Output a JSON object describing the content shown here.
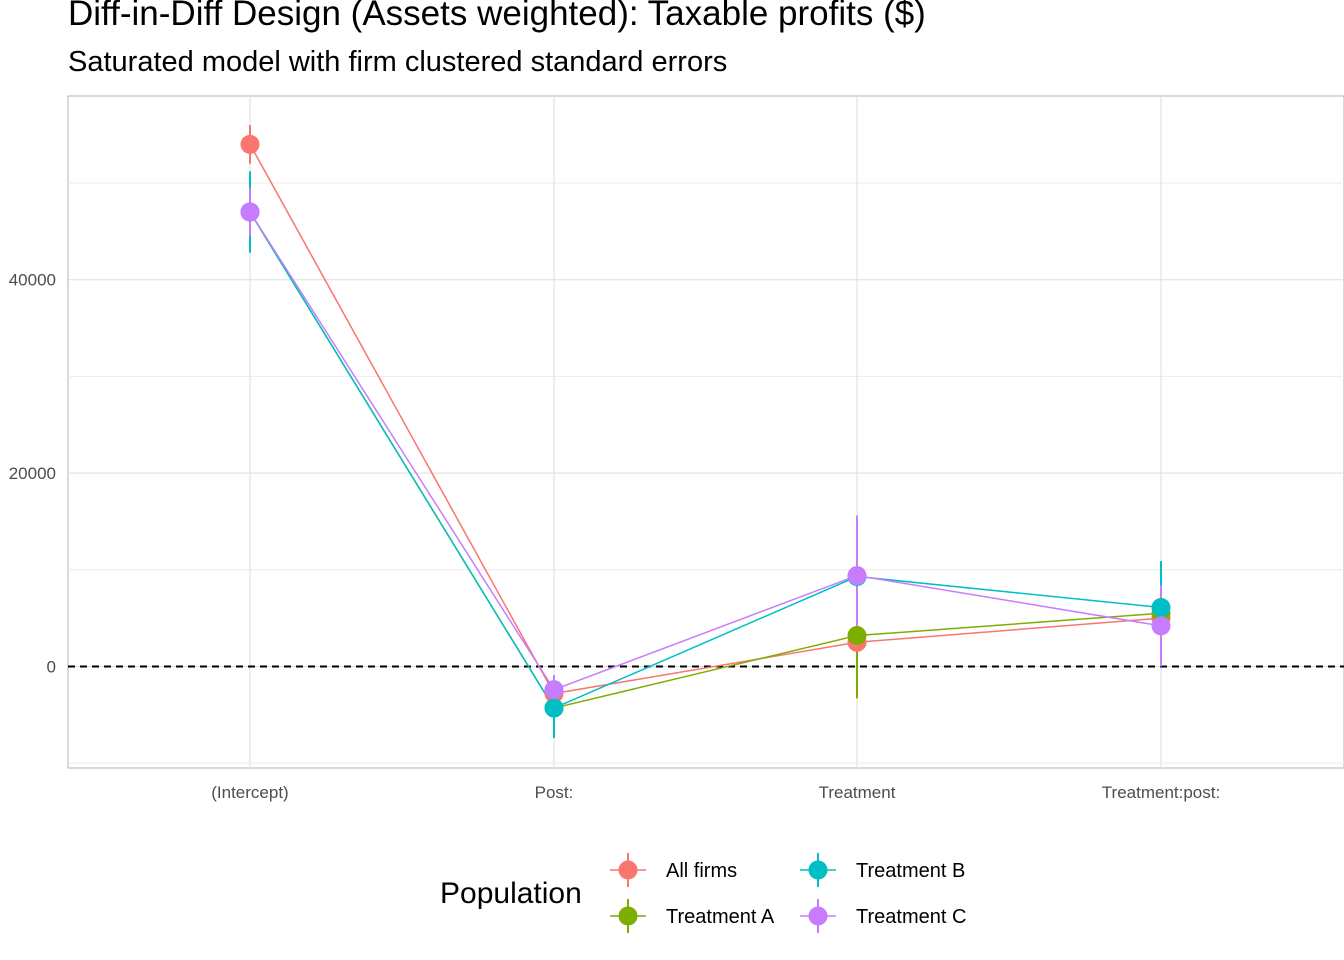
{
  "chart_data": {
    "type": "line",
    "title": "Diff-in-Diff Design (Assets weighted): Taxable profits  ($)",
    "subtitle": "Saturated model with firm clustered standard errors",
    "xlabel": "",
    "ylabel": "",
    "categories": [
      "(Intercept)",
      "Post:",
      "Treatment",
      "Treatment:post:"
    ],
    "y_ticks": [
      0,
      20000,
      40000
    ],
    "y_tick_labels": [
      "0",
      "20000",
      "40000"
    ],
    "ylim": [
      -10500,
      59000
    ],
    "grid": true,
    "reference_line": {
      "y": 0,
      "style": "dashed"
    },
    "legend": {
      "title": "Population",
      "position": "bottom"
    },
    "series": [
      {
        "name": "All firms",
        "color": "#F8766D",
        "values": [
          54000,
          -2800,
          2500,
          5000
        ],
        "lower": [
          52000,
          -4300,
          1000,
          3500
        ],
        "upper": [
          56000,
          -1300,
          4000,
          6500
        ]
      },
      {
        "name": "Treatment A",
        "color": "#7CAE00",
        "values": [
          47000,
          -4300,
          3200,
          5500
        ],
        "lower": [
          45000,
          -5800,
          -3300,
          4000
        ],
        "upper": [
          49000,
          -2800,
          9700,
          7000
        ]
      },
      {
        "name": "Treatment B",
        "color": "#00BFC4",
        "values": [
          47000,
          -4300,
          9300,
          6100
        ],
        "lower": [
          42800,
          -7400,
          3000,
          1300
        ],
        "upper": [
          51200,
          -1200,
          15600,
          10900
        ]
      },
      {
        "name": "Treatment C",
        "color": "#C77CFF",
        "values": [
          47000,
          -2400,
          9400,
          4200
        ],
        "lower": [
          44500,
          -3900,
          3200,
          0
        ],
        "upper": [
          49500,
          -900,
          15600,
          8400
        ]
      }
    ]
  }
}
